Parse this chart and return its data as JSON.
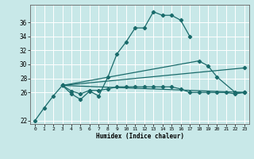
{
  "xlabel": "Humidex (Indice chaleur)",
  "background_color": "#c8e8e8",
  "grid_color": "#ffffff",
  "line_color": "#1a6b6b",
  "xlim": [
    -0.5,
    23.5
  ],
  "ylim": [
    21.5,
    38.5
  ],
  "yticks": [
    22,
    26,
    28,
    30,
    32,
    34,
    36
  ],
  "xticks": [
    0,
    1,
    2,
    3,
    4,
    5,
    6,
    7,
    8,
    9,
    10,
    11,
    12,
    13,
    14,
    15,
    16,
    17,
    18,
    19,
    20,
    21,
    22,
    23
  ],
  "lines_data": [
    {
      "name": "main_curve",
      "x": [
        0,
        1,
        2,
        3,
        4,
        5,
        6,
        7,
        8,
        9,
        10,
        11,
        12,
        13,
        14,
        15,
        16,
        17
      ],
      "y": [
        22.0,
        23.8,
        25.5,
        27.0,
        25.8,
        25.0,
        26.2,
        25.5,
        28.2,
        31.5,
        33.2,
        35.2,
        35.2,
        37.5,
        37.0,
        37.0,
        36.3,
        34.0
      ]
    },
    {
      "name": "flat_curve",
      "x": [
        3,
        4,
        5,
        6,
        7,
        8,
        9,
        10,
        11,
        12,
        13,
        14,
        15,
        16,
        17,
        18,
        19,
        20,
        21,
        22,
        23
      ],
      "y": [
        27.0,
        26.2,
        25.8,
        26.3,
        26.3,
        26.5,
        26.8,
        26.8,
        26.8,
        26.8,
        26.8,
        26.8,
        26.8,
        26.5,
        26.0,
        26.0,
        26.0,
        26.0,
        26.0,
        25.8,
        26.0
      ]
    },
    {
      "name": "rising_line1",
      "x": [
        3,
        18,
        19,
        20,
        22,
        23
      ],
      "y": [
        27.0,
        30.5,
        29.8,
        28.2,
        26.0,
        26.0
      ]
    },
    {
      "name": "rising_line2",
      "x": [
        3,
        23
      ],
      "y": [
        27.0,
        29.5
      ]
    },
    {
      "name": "rising_line3",
      "x": [
        3,
        23
      ],
      "y": [
        27.0,
        26.0
      ]
    }
  ]
}
